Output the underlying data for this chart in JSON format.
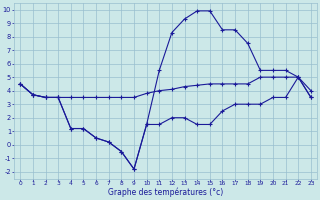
{
  "xlabel": "Graphe des températures (°c)",
  "bg_color": "#cce8e8",
  "grid_color": "#99bfcf",
  "line_color": "#1a1a99",
  "hours": [
    0,
    1,
    2,
    3,
    4,
    5,
    6,
    7,
    8,
    9,
    10,
    11,
    12,
    13,
    14,
    15,
    16,
    17,
    18,
    19,
    20,
    21,
    22,
    23
  ],
  "line_flat": [
    4.5,
    3.7,
    3.5,
    3.5,
    3.5,
    3.5,
    3.5,
    3.5,
    3.5,
    3.5,
    3.8,
    4.0,
    4.1,
    4.3,
    4.4,
    4.5,
    4.5,
    4.5,
    4.5,
    5.0,
    5.0,
    5.0,
    5.0,
    3.5
  ],
  "line_high": [
    4.5,
    3.7,
    3.5,
    3.5,
    1.2,
    1.2,
    0.5,
    0.2,
    -0.5,
    -1.8,
    1.5,
    5.5,
    8.3,
    9.3,
    9.9,
    9.9,
    8.5,
    8.5,
    7.5,
    5.5,
    5.5,
    5.5,
    5.0,
    4.0
  ],
  "line_low": [
    4.5,
    3.7,
    3.5,
    3.5,
    1.2,
    1.2,
    0.5,
    0.2,
    -0.5,
    -1.8,
    1.5,
    1.5,
    2.0,
    2.0,
    1.5,
    1.5,
    2.5,
    3.0,
    3.0,
    3.0,
    3.5,
    3.5,
    5.0,
    3.5
  ],
  "ylim": [
    -2.5,
    10.5
  ],
  "xlim": [
    -0.5,
    23.5
  ],
  "yticks": [
    -2,
    -1,
    0,
    1,
    2,
    3,
    4,
    5,
    6,
    7,
    8,
    9,
    10
  ],
  "xticks": [
    0,
    1,
    2,
    3,
    4,
    5,
    6,
    7,
    8,
    9,
    10,
    11,
    12,
    13,
    14,
    15,
    16,
    17,
    18,
    19,
    20,
    21,
    22,
    23
  ]
}
